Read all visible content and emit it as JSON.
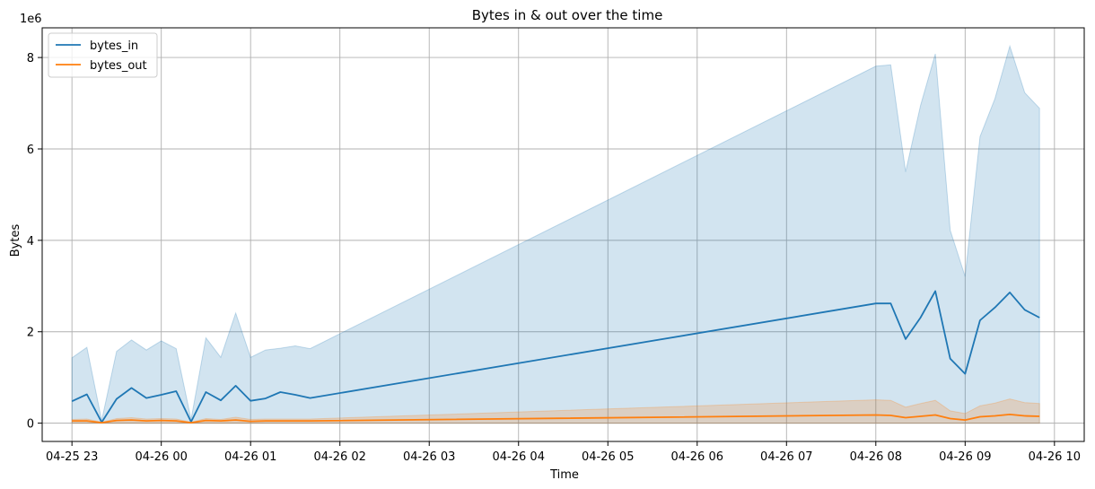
{
  "chart_data": {
    "type": "line",
    "title": "Bytes in & out over the time",
    "xlabel": "Time",
    "ylabel": "Bytes",
    "y_multiplier_label": "1e6",
    "x_ticks": [
      "04-25 23",
      "04-26 00",
      "04-26 01",
      "04-26 02",
      "04-26 03",
      "04-26 04",
      "04-26 05",
      "04-26 06",
      "04-26 07",
      "04-26 08",
      "04-26 09",
      "04-26 10"
    ],
    "xlim": [
      "2024-04-25T22:40",
      "2024-04-26T10:20"
    ],
    "ylim": [
      -0.4,
      8.65
    ],
    "y_ticks": [
      0,
      2,
      4,
      6,
      8
    ],
    "grid": true,
    "legend_position": "top-left",
    "x": [
      "2024-04-25T23:00",
      "2024-04-25T23:10",
      "2024-04-25T23:20",
      "2024-04-25T23:30",
      "2024-04-25T23:40",
      "2024-04-25T23:50",
      "2024-04-26T00:00",
      "2024-04-26T00:10",
      "2024-04-26T00:20",
      "2024-04-26T00:30",
      "2024-04-26T00:40",
      "2024-04-26T00:50",
      "2024-04-26T01:00",
      "2024-04-26T01:10",
      "2024-04-26T01:20",
      "2024-04-26T01:30",
      "2024-04-26T01:40",
      "2024-04-26T08:00",
      "2024-04-26T08:10",
      "2024-04-26T08:20",
      "2024-04-26T08:30",
      "2024-04-26T08:40",
      "2024-04-26T08:50",
      "2024-04-26T09:00",
      "2024-04-26T09:10",
      "2024-04-26T09:20",
      "2024-04-26T09:30",
      "2024-04-26T09:40",
      "2024-04-26T09:50"
    ],
    "series": [
      {
        "name": "bytes_in",
        "color": "#1f77b4",
        "values": [
          0.48,
          0.63,
          0.02,
          0.53,
          0.77,
          0.55,
          0.62,
          0.7,
          0.03,
          0.68,
          0.5,
          0.82,
          0.49,
          0.54,
          0.68,
          0.62,
          0.55,
          2.62,
          2.62,
          1.84,
          2.31,
          2.89,
          1.41,
          1.08,
          2.25,
          2.53,
          2.86,
          2.48,
          2.31
        ],
        "upper": [
          1.43,
          1.66,
          0.06,
          1.57,
          1.82,
          1.6,
          1.8,
          1.63,
          0.08,
          1.87,
          1.44,
          2.41,
          1.44,
          1.6,
          1.64,
          1.69,
          1.63,
          7.81,
          7.84,
          5.5,
          6.95,
          8.08,
          4.22,
          3.21,
          6.27,
          7.1,
          8.25,
          7.23,
          6.89
        ],
        "lower": [
          0,
          0,
          0,
          0,
          0,
          0,
          0,
          0,
          0,
          0,
          0,
          0,
          0,
          0,
          0,
          0,
          0,
          0,
          0,
          0,
          0,
          0,
          0,
          0,
          0,
          0,
          0,
          0,
          0
        ]
      },
      {
        "name": "bytes_out",
        "color": "#ff7f0e",
        "values": [
          0.05,
          0.05,
          0.01,
          0.06,
          0.07,
          0.05,
          0.06,
          0.05,
          0.01,
          0.06,
          0.05,
          0.07,
          0.04,
          0.05,
          0.05,
          0.05,
          0.05,
          0.18,
          0.17,
          0.12,
          0.15,
          0.18,
          0.1,
          0.07,
          0.14,
          0.16,
          0.19,
          0.16,
          0.15
        ],
        "upper": [
          0.08,
          0.09,
          0.02,
          0.1,
          0.12,
          0.09,
          0.1,
          0.09,
          0.02,
          0.1,
          0.08,
          0.13,
          0.08,
          0.09,
          0.09,
          0.09,
          0.09,
          0.51,
          0.5,
          0.35,
          0.43,
          0.5,
          0.27,
          0.21,
          0.38,
          0.44,
          0.53,
          0.45,
          0.43
        ],
        "lower": [
          0,
          0,
          0,
          0,
          0,
          0,
          0,
          0,
          0,
          0,
          0,
          0,
          0,
          0,
          0,
          0,
          0,
          0,
          0,
          0,
          0,
          0,
          0,
          0,
          0,
          0,
          0,
          0,
          0
        ]
      }
    ]
  }
}
